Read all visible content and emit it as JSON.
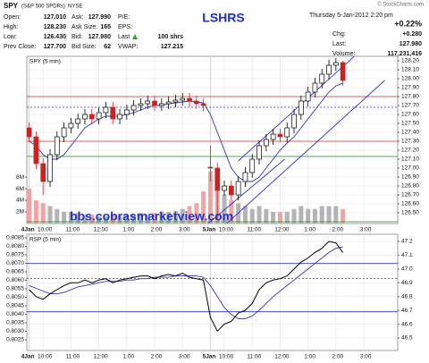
{
  "quote": {
    "symbol": "SPY",
    "name": "(S&P 500 SPDRs)",
    "exchange": "NYSE",
    "title": "LSHRS",
    "source": "© StockCharts.com",
    "date": "Thursday 5-Jan-2012 2:20 pm",
    "pct_change": "+0.22%",
    "rows": [
      [
        {
          "label": "Open:",
          "value": "127.010"
        },
        {
          "label": "Ask:",
          "value": "127.990"
        },
        {
          "label": "P/E:"
        }
      ],
      [
        {
          "label": "High:",
          "value": "128.230"
        },
        {
          "label": "Ask Size:",
          "value": "165"
        },
        {
          "label": "EPS:"
        }
      ],
      [
        {
          "label": "Low:",
          "value": "126.430"
        },
        {
          "label": "Bid:",
          "value": "127.980"
        },
        {
          "label": "Last",
          "value": "100 shrs"
        }
      ],
      [
        {
          "label": "Prev Close:",
          "value": "127.700"
        },
        {
          "label": "Bid Size:",
          "value": "62"
        },
        {
          "label": "VWAP:",
          "value": "127.215"
        }
      ]
    ],
    "right": [
      {
        "label": "Chg:",
        "value": "+0.280"
      },
      {
        "label": "Last:",
        "value": "127.980"
      },
      {
        "label": "Volume:",
        "value": "117,231,416"
      }
    ]
  },
  "chart_data": [
    {
      "type": "candlestick",
      "label": "SPY (5 min)",
      "watermark": "bbs.cobrasmarketview.com",
      "x": [
        0,
        3,
        6,
        9,
        12,
        15,
        18,
        21,
        24,
        27,
        30,
        33,
        36,
        39,
        42,
        45,
        48,
        51,
        54,
        57,
        60,
        63,
        66,
        69,
        72,
        75,
        78,
        81,
        84,
        87,
        90,
        93,
        96,
        99,
        102,
        105,
        108,
        111,
        114,
        117,
        120,
        123,
        126,
        129,
        132,
        135
      ],
      "open": [
        127.45,
        127.35,
        127.05,
        126.85,
        127.15,
        127.35,
        127.45,
        127.5,
        127.55,
        127.6,
        127.55,
        127.62,
        127.68,
        127.55,
        127.6,
        127.65,
        127.7,
        127.72,
        127.75,
        127.7,
        127.72,
        127.74,
        127.76,
        127.78,
        127.75,
        127.72,
        127.01,
        127.0,
        126.75,
        126.8,
        126.7,
        126.85,
        126.95,
        127.1,
        127.25,
        127.32,
        127.38,
        127.35,
        127.45,
        127.6,
        127.75,
        127.85,
        127.95,
        128.05,
        128.15,
        128.18
      ],
      "high": [
        127.51,
        127.41,
        127.11,
        127.21,
        127.41,
        127.51,
        127.56,
        127.61,
        127.66,
        127.66,
        127.68,
        127.74,
        127.74,
        127.66,
        127.71,
        127.76,
        127.78,
        127.81,
        127.81,
        127.78,
        127.8,
        127.82,
        127.84,
        127.84,
        127.81,
        127.78,
        127.25,
        127.06,
        126.86,
        126.86,
        126.91,
        127.01,
        127.16,
        127.31,
        127.38,
        127.44,
        127.44,
        127.51,
        127.66,
        127.81,
        127.91,
        128.01,
        128.11,
        128.21,
        128.23,
        128.2
      ],
      "low": [
        127.29,
        126.99,
        126.7,
        126.79,
        127.09,
        127.29,
        127.39,
        127.44,
        127.49,
        127.49,
        127.49,
        127.56,
        127.49,
        127.49,
        127.54,
        127.59,
        127.64,
        127.66,
        127.64,
        127.64,
        127.66,
        127.68,
        127.7,
        127.69,
        127.66,
        127.64,
        126.85,
        126.43,
        126.69,
        126.64,
        126.64,
        126.79,
        126.89,
        127.04,
        127.19,
        127.26,
        127.29,
        127.29,
        127.39,
        127.54,
        127.69,
        127.79,
        127.89,
        127.99,
        128.09,
        127.92
      ],
      "close": [
        127.35,
        127.05,
        126.85,
        127.15,
        127.35,
        127.45,
        127.5,
        127.55,
        127.6,
        127.55,
        127.62,
        127.68,
        127.55,
        127.6,
        127.65,
        127.7,
        127.72,
        127.75,
        127.7,
        127.72,
        127.74,
        127.76,
        127.78,
        127.75,
        127.72,
        127.7,
        127.0,
        126.75,
        126.8,
        126.7,
        126.85,
        126.95,
        127.1,
        127.25,
        127.32,
        127.38,
        127.35,
        127.45,
        127.6,
        127.75,
        127.85,
        127.95,
        128.05,
        128.15,
        128.18,
        127.98
      ],
      "up_color": "#000000",
      "down_color": "#cc2222",
      "ma": {
        "color": "#3333aa",
        "values": [
          127.3,
          127.25,
          127.15,
          127.1,
          127.1,
          127.15,
          127.25,
          127.35,
          127.45,
          127.5,
          127.55,
          127.58,
          127.58,
          127.58,
          127.6,
          127.62,
          127.65,
          127.68,
          127.7,
          127.7,
          127.72,
          127.73,
          127.74,
          127.75,
          127.74,
          127.73,
          127.6,
          127.4,
          127.2,
          127.0,
          126.9,
          126.85,
          126.85,
          126.9,
          127.0,
          127.1,
          127.2,
          127.28,
          127.35,
          127.45,
          127.55,
          127.65,
          127.75,
          127.85,
          127.92,
          127.95
        ]
      },
      "volume": {
        "values": [
          6,
          4,
          3.5,
          3,
          2.5,
          2,
          2,
          1.8,
          1.5,
          1.5,
          1.2,
          1.2,
          1.5,
          1.2,
          1.5,
          1.5,
          1.8,
          1.5,
          1.8,
          2,
          2,
          2.2,
          2.5,
          3,
          3.5,
          5.5,
          9,
          7,
          5,
          4,
          3.5,
          3,
          2.5,
          3,
          2.5,
          2,
          2,
          2,
          2.5,
          3,
          2.5,
          2.5,
          3,
          3,
          3,
          2.5
        ],
        "up_color": "#b4b4b4",
        "down_color": "#f2a4a4",
        "ylim": [
          0,
          28.8
        ],
        "yticks": [
          {
            "value": 2,
            "label": "2M"
          },
          {
            "value": 4,
            "label": "4M"
          },
          {
            "value": 6,
            "label": "6M"
          },
          {
            "value": 8,
            "label": "8M"
          }
        ]
      },
      "xlim": [
        -1,
        158.6
      ],
      "xticks": [
        {
          "value": 6,
          "label": "10:00"
        },
        {
          "value": 18,
          "label": "11:00"
        },
        {
          "value": 30,
          "label": "12:00"
        },
        {
          "value": 42,
          "label": "1:00"
        },
        {
          "value": 54,
          "label": "2:00"
        },
        {
          "value": 66,
          "label": "3:00"
        },
        {
          "value": 84,
          "label": "10:00"
        },
        {
          "value": 96,
          "label": "11:00"
        },
        {
          "value": 108,
          "label": "12:00"
        },
        {
          "value": 120,
          "label": "1:00"
        },
        {
          "value": 132,
          "label": "2:00"
        },
        {
          "value": 144,
          "label": "3:00"
        }
      ],
      "day_ticks": [
        {
          "value": 0,
          "label": "4Jan"
        },
        {
          "value": 78,
          "label": "5Jan"
        }
      ],
      "ylim": [
        126.38,
        128.25
      ],
      "yticks": [
        {
          "value": 126.5,
          "label": "126.50"
        },
        {
          "value": 126.6,
          "label": "126.60"
        },
        {
          "value": 126.7,
          "label": "126.70"
        },
        {
          "value": 126.8,
          "label": "126.80"
        },
        {
          "value": 126.9,
          "label": "126.90"
        },
        {
          "value": 127.0,
          "label": "127.00"
        },
        {
          "value": 127.1,
          "label": "127.10"
        },
        {
          "value": 127.2,
          "label": "127.20"
        },
        {
          "value": 127.3,
          "label": "127.30"
        },
        {
          "value": 127.4,
          "label": "127.40"
        },
        {
          "value": 127.5,
          "label": "127.50"
        },
        {
          "value": 127.6,
          "label": "127.60"
        },
        {
          "value": 127.7,
          "label": "127.70"
        },
        {
          "value": 127.8,
          "label": "127.80"
        },
        {
          "value": 127.9,
          "label": "127.90"
        },
        {
          "value": 128.0,
          "label": "128.00"
        },
        {
          "value": 128.1,
          "label": "128.10"
        },
        {
          "value": 128.2,
          "label": "128.20"
        }
      ],
      "grid": true,
      "hlines": [
        {
          "value": 127.8,
          "color": "#cc3333",
          "dashed": false
        },
        {
          "value": 127.68,
          "color": "#3333bb",
          "dashed": true
        },
        {
          "value": 127.3,
          "color": "#cc3333",
          "dashed": false
        },
        {
          "value": 127.13,
          "color": "#228822",
          "dashed": false
        },
        {
          "value": 126.4,
          "color": "#228822",
          "dashed": false
        }
      ],
      "trendlines": [
        {
          "x": [
            85,
            153
          ],
          "y": [
            126.38,
            127.98
          ],
          "color": "#3333cc"
        },
        {
          "x": [
            90,
            145
          ],
          "y": [
            127.08,
            128.37
          ],
          "color": "#3333cc"
        },
        {
          "x": [
            77,
            110
          ],
          "y": [
            126.38,
            127.1
          ],
          "color": "#3333cc"
        }
      ]
    },
    {
      "type": "line",
      "label": "RSP (5 min)",
      "x": [
        0,
        3,
        6,
        9,
        12,
        15,
        18,
        21,
        24,
        27,
        30,
        33,
        36,
        39,
        42,
        45,
        48,
        51,
        54,
        57,
        60,
        63,
        66,
        69,
        72,
        75,
        78,
        81,
        84,
        87,
        90,
        93,
        96,
        99,
        102,
        105,
        108,
        111,
        114,
        117,
        120,
        123,
        126,
        129,
        132,
        135
      ],
      "values": [
        46.85,
        46.8,
        46.78,
        46.82,
        46.85,
        46.88,
        46.9,
        46.9,
        46.92,
        46.9,
        46.92,
        46.93,
        46.9,
        46.92,
        46.93,
        46.94,
        46.95,
        46.95,
        46.93,
        46.95,
        46.96,
        46.95,
        46.97,
        46.94,
        46.93,
        46.92,
        46.65,
        46.55,
        46.6,
        46.62,
        46.68,
        46.7,
        46.75,
        46.85,
        46.9,
        46.92,
        46.93,
        46.95,
        47.0,
        47.05,
        47.08,
        47.12,
        47.15,
        47.2,
        47.19,
        47.12
      ],
      "color": "#000000",
      "ma": {
        "color": "#3333aa",
        "values": [
          46.88,
          46.86,
          46.84,
          46.82,
          46.82,
          46.83,
          46.85,
          46.87,
          46.88,
          46.89,
          46.9,
          46.91,
          46.91,
          46.91,
          46.92,
          46.92,
          46.93,
          46.93,
          46.94,
          46.94,
          46.94,
          46.95,
          46.95,
          46.95,
          46.95,
          46.94,
          46.88,
          46.8,
          46.72,
          46.67,
          46.64,
          46.64,
          46.66,
          46.7,
          46.75,
          46.8,
          46.84,
          46.88,
          46.92,
          46.96,
          47.0,
          47.04,
          47.08,
          47.12,
          47.15,
          47.16
        ]
      },
      "xlim": [
        -1,
        158.6
      ],
      "xticks": [
        {
          "value": 6,
          "label": "10:00"
        },
        {
          "value": 18,
          "label": "11:00"
        },
        {
          "value": 30,
          "label": "12:00"
        },
        {
          "value": 42,
          "label": "1:00"
        },
        {
          "value": 54,
          "label": "2:00"
        },
        {
          "value": 66,
          "label": "3:00"
        },
        {
          "value": 84,
          "label": "10:00"
        },
        {
          "value": 96,
          "label": "11:00"
        },
        {
          "value": 108,
          "label": "12:00"
        },
        {
          "value": 120,
          "label": "1:00"
        },
        {
          "value": 132,
          "label": "2:00"
        },
        {
          "value": 144,
          "label": "3:00"
        }
      ],
      "day_ticks": [
        {
          "value": 0,
          "label": "4Jan"
        },
        {
          "value": 78,
          "label": "5Jan"
        }
      ],
      "ylim": [
        46.409,
        47.252
      ],
      "yticks": [
        46.5,
        46.6,
        46.7,
        46.8,
        46.9,
        {
          "value": 47,
          "label": "47.0"
        },
        47.1,
        47.2
      ],
      "y2lim": [
        0.80187,
        0.80871
      ],
      "y2ticks": [
        0.8025,
        {
          "value": 0.803,
          "label": "0.8030"
        },
        0.8035,
        {
          "value": 0.804,
          "label": "0.8040"
        },
        0.8045,
        {
          "value": 0.805,
          "label": "0.8050"
        },
        0.8055,
        {
          "value": 0.806,
          "label": "0.8060"
        },
        0.8065,
        {
          "value": 0.807,
          "label": "0.8070"
        },
        0.8075,
        {
          "value": 0.808,
          "label": "0.8080"
        },
        0.8085
      ],
      "grid": true,
      "hlines": [
        {
          "value": 47.04,
          "color": "#3333bb",
          "dashed": false
        },
        {
          "value": 46.93,
          "color": "#3333bb",
          "dashed": true
        },
        {
          "value": 46.69,
          "color": "#3333bb",
          "dashed": false
        }
      ]
    }
  ]
}
